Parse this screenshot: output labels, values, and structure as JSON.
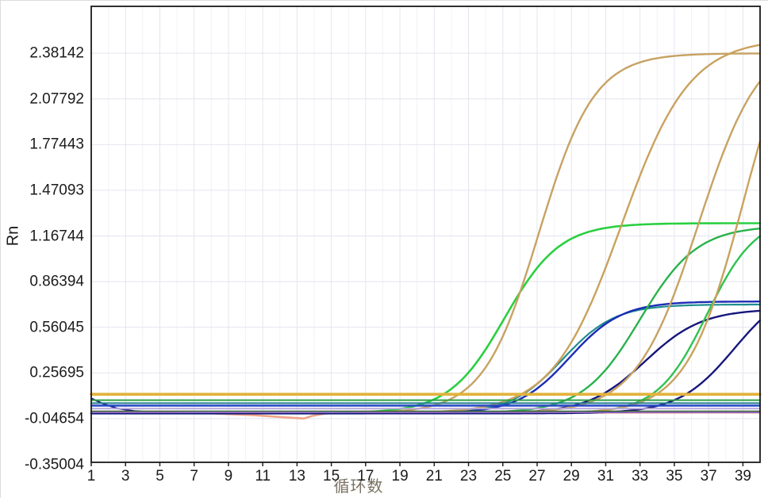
{
  "page": {
    "background": "#ffffff"
  },
  "chart_data": {
    "type": "line",
    "title": "",
    "xlabel": "循环数",
    "ylabel": "Rn",
    "xlim": [
      1,
      40
    ],
    "ylim": [
      -0.337,
      2.693
    ],
    "x_ticks": [
      1,
      3,
      5,
      7,
      9,
      11,
      13,
      15,
      17,
      19,
      21,
      23,
      25,
      27,
      29,
      31,
      33,
      35,
      37,
      39
    ],
    "y_ticks": [
      {
        "label": "2.38142",
        "v": 2.38142
      },
      {
        "label": "2.07792",
        "v": 2.07792
      },
      {
        "label": "1.77443",
        "v": 1.77443
      },
      {
        "label": "1.47093",
        "v": 1.47093
      },
      {
        "label": "1.16744",
        "v": 1.16744
      },
      {
        "label": "0.86394",
        "v": 0.86394
      },
      {
        "label": "0.56045",
        "v": 0.56045
      },
      {
        "label": "0.25695",
        "v": 0.25695
      },
      {
        "label": "-0.04654",
        "v": -0.04654
      },
      {
        "label": "-0.35004",
        "v": -0.35004
      }
    ],
    "grid": {
      "color": "#e4e4ef",
      "minor_color": "#f2f2f8",
      "border_color": "#1a1a1a"
    },
    "axis_tick_color": "#222222",
    "threshold_value": 0.115,
    "series": [
      {
        "name": "navy-baseline-start",
        "kind": "points",
        "color": "#16167c",
        "width": 2.0,
        "points": [
          [
            1,
            0.088
          ],
          [
            1.7,
            0.052
          ],
          [
            2.5,
            0.022
          ],
          [
            3.5,
            0.004
          ],
          [
            5,
            -0.007
          ],
          [
            8,
            -0.01
          ]
        ]
      },
      {
        "name": "salmon-baseline-drift",
        "kind": "points",
        "color": "#f2a389",
        "width": 2.6,
        "points": [
          [
            1,
            -0.002
          ],
          [
            5,
            -0.004
          ],
          [
            8,
            -0.012
          ],
          [
            10.5,
            -0.024
          ],
          [
            12.3,
            -0.038
          ],
          [
            13.4,
            -0.046
          ],
          [
            13.9,
            -0.028
          ],
          [
            14.7,
            -0.012
          ],
          [
            16,
            -0.008
          ],
          [
            20,
            -0.007
          ],
          [
            40,
            -0.006
          ]
        ]
      },
      {
        "name": "amp-green-1",
        "kind": "sigmoid",
        "color": "#2bcf40",
        "width": 2.6,
        "base": -0.01,
        "plateau": 1.252,
        "k": 0.62,
        "mid": 25.1,
        "ct": 20.2
      },
      {
        "name": "amp-tan-1",
        "kind": "sigmoid",
        "color": "#c7a263",
        "width": 2.4,
        "base": -0.011,
        "plateau": 2.381,
        "k": 0.62,
        "mid": 27.1,
        "ct": 22.2
      },
      {
        "name": "amp-teal-1",
        "kind": "sigmoid",
        "color": "#1f8e8f",
        "width": 2.2,
        "base": -0.013,
        "plateau": 0.712,
        "k": 0.66,
        "mid": 28.5,
        "ct": 23.9
      },
      {
        "name": "amp-navy-1",
        "kind": "sigmoid",
        "color": "#1c2cb5",
        "width": 2.4,
        "base": -0.012,
        "plateau": 0.732,
        "k": 0.66,
        "mid": 28.9,
        "ct": 24.3
      },
      {
        "name": "amp-tan-2",
        "kind": "sigmoid",
        "color": "#c9a25e",
        "width": 2.4,
        "base": -0.012,
        "plateau": 2.48,
        "k": 0.5,
        "mid": 31.9,
        "ct": 25.8
      },
      {
        "name": "amp-green-2",
        "kind": "sigmoid",
        "color": "#29b24b",
        "width": 2.4,
        "base": -0.01,
        "plateau": 1.235,
        "k": 0.6,
        "mid": 33.0,
        "ct": 27.9
      },
      {
        "name": "amp-navy-2",
        "kind": "sigmoid",
        "color": "#16167c",
        "width": 2.4,
        "base": -0.012,
        "plateau": 0.682,
        "k": 0.6,
        "mid": 33.3,
        "ct": 28.2
      },
      {
        "name": "amp-tan-3",
        "kind": "sigmoid",
        "color": "#c7a263",
        "width": 2.4,
        "base": -0.012,
        "plateau": 2.5,
        "k": 0.55,
        "mid": 36.4,
        "ct": 30.9
      },
      {
        "name": "amp-green-3",
        "kind": "sigmoid",
        "color": "#2fc250",
        "width": 2.4,
        "base": -0.01,
        "plateau": 1.3,
        "k": 0.7,
        "mid": 36.9,
        "ct": 32.6
      },
      {
        "name": "amp-tan-4",
        "kind": "sigmoid",
        "color": "#c9a25e",
        "width": 2.4,
        "base": -0.012,
        "plateau": 2.82,
        "k": 0.6,
        "mid": 39.05,
        "ct": 34.0
      },
      {
        "name": "amp-navy-3",
        "kind": "sigmoid",
        "color": "#16167c",
        "width": 2.4,
        "base": -0.012,
        "plateau": 0.85,
        "k": 0.62,
        "mid": 38.5,
        "ct": 35.4
      },
      {
        "name": "flat-darkgreen",
        "kind": "flat",
        "color": "#39683a",
        "width": 1.4,
        "v": 0.003
      },
      {
        "name": "flat-violet",
        "kind": "flat",
        "color": "#8a62c0",
        "width": 1.6,
        "v": -0.006
      },
      {
        "name": "flat-lavender",
        "kind": "flat",
        "color": "#b7a8dc",
        "width": 2.0,
        "v": 0.02
      },
      {
        "name": "flat-blue",
        "kind": "flat",
        "color": "#2746c6",
        "width": 2.4,
        "v": 0.04
      },
      {
        "name": "flat-teal",
        "kind": "flat",
        "color": "#207f8a",
        "width": 2.0,
        "v": 0.056
      },
      {
        "name": "flat-green",
        "kind": "flat",
        "color": "#2f9e44",
        "width": 2.0,
        "v": 0.076
      },
      {
        "name": "threshold",
        "kind": "flat",
        "color": "#e2b33c",
        "width": 3.6,
        "v": 0.115
      }
    ]
  }
}
